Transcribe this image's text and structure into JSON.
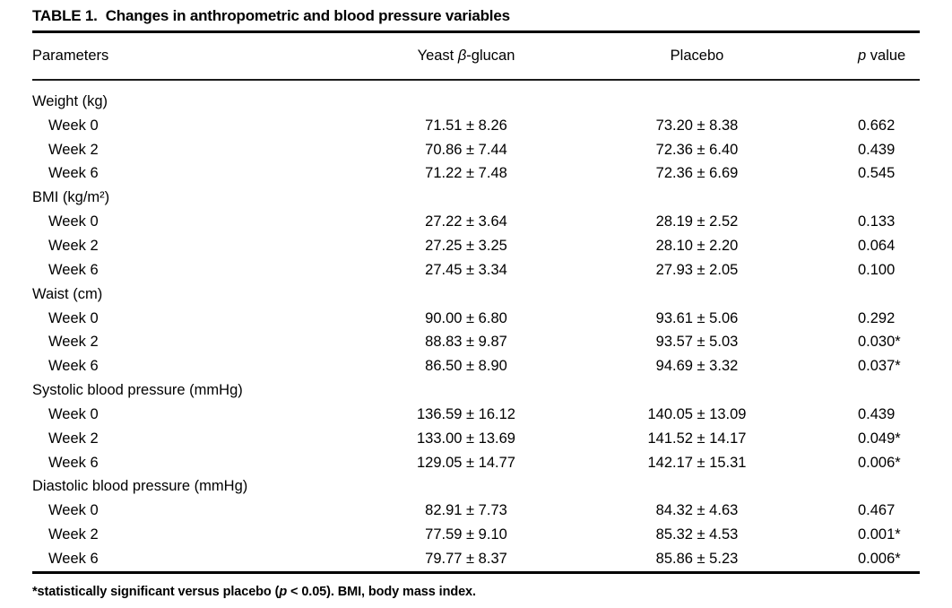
{
  "title": {
    "label": "TABLE 1.",
    "text": "Changes in anthropometric and blood pressure variables"
  },
  "table": {
    "columns": {
      "parameters": "Parameters",
      "yeast_pre": "Yeast ",
      "yeast_beta": "β",
      "yeast_post": "-glucan",
      "placebo": "Placebo",
      "p_italic": "p",
      "p_rest": " value"
    },
    "rows": [
      {
        "label": "Weight (kg)",
        "sub": false,
        "yeast": "",
        "placebo": "",
        "p": ""
      },
      {
        "label": "Week 0",
        "sub": true,
        "yeast": "71.51 ± 8.26",
        "placebo": "73.20 ± 8.38",
        "p": "0.662"
      },
      {
        "label": "Week 2",
        "sub": true,
        "yeast": "70.86 ± 7.44",
        "placebo": "72.36 ± 6.40",
        "p": "0.439"
      },
      {
        "label": "Week 6",
        "sub": true,
        "yeast": "71.22 ± 7.48",
        "placebo": "72.36 ± 6.69",
        "p": "0.545"
      },
      {
        "label": "BMI (kg/m²)",
        "sub": false,
        "yeast": "",
        "placebo": "",
        "p": ""
      },
      {
        "label": "Week 0",
        "sub": true,
        "yeast": "27.22 ± 3.64",
        "placebo": "28.19 ± 2.52",
        "p": "0.133"
      },
      {
        "label": "Week 2",
        "sub": true,
        "yeast": "27.25 ± 3.25",
        "placebo": "28.10 ± 2.20",
        "p": "0.064"
      },
      {
        "label": "Week 6",
        "sub": true,
        "yeast": "27.45 ± 3.34",
        "placebo": "27.93 ± 2.05",
        "p": "0.100"
      },
      {
        "label": "Waist (cm)",
        "sub": false,
        "yeast": "",
        "placebo": "",
        "p": ""
      },
      {
        "label": "Week 0",
        "sub": true,
        "yeast": "90.00 ± 6.80",
        "placebo": "93.61 ± 5.06",
        "p": "0.292"
      },
      {
        "label": "Week 2",
        "sub": true,
        "yeast": "88.83 ± 9.87",
        "placebo": "93.57 ± 5.03",
        "p": "0.030*"
      },
      {
        "label": "Week 6",
        "sub": true,
        "yeast": "86.50 ± 8.90",
        "placebo": "94.69 ± 3.32",
        "p": "0.037*"
      },
      {
        "label": "Systolic blood pressure (mmHg)",
        "sub": false,
        "yeast": "",
        "placebo": "",
        "p": ""
      },
      {
        "label": "Week 0",
        "sub": true,
        "yeast": "136.59 ± 16.12",
        "placebo": "140.05 ± 13.09",
        "p": "0.439"
      },
      {
        "label": "Week 2",
        "sub": true,
        "yeast": "133.00 ± 13.69",
        "placebo": "141.52 ± 14.17",
        "p": "0.049*"
      },
      {
        "label": "Week 6",
        "sub": true,
        "yeast": "129.05 ± 14.77",
        "placebo": "142.17 ± 15.31",
        "p": "0.006*"
      },
      {
        "label": "Diastolic blood pressure (mmHg)",
        "sub": false,
        "yeast": "",
        "placebo": "",
        "p": ""
      },
      {
        "label": "Week 0",
        "sub": true,
        "yeast": "82.91 ± 7.73",
        "placebo": "84.32 ± 4.63",
        "p": "0.467"
      },
      {
        "label": "Week 2",
        "sub": true,
        "yeast": "77.59 ± 9.10",
        "placebo": "85.32 ± 4.53",
        "p": "0.001*"
      },
      {
        "label": "Week 6",
        "sub": true,
        "yeast": "79.77 ± 8.37",
        "placebo": "85.86 ± 5.23",
        "p": "0.006*"
      }
    ]
  },
  "footnote": {
    "pre": "*statistically significant versus placebo (",
    "p": "p",
    "post": " < 0.05). BMI, body mass index."
  },
  "colors": {
    "text": "#000000",
    "rule": "#000000",
    "background": "#ffffff"
  }
}
